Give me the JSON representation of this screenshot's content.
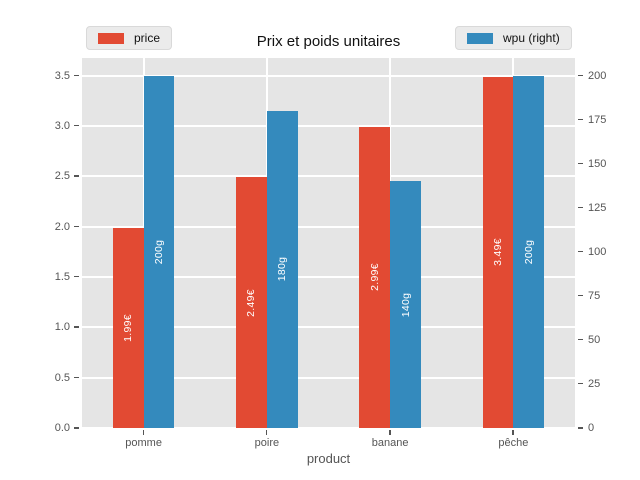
{
  "chart_data": {
    "type": "bar",
    "title": "Prix et poids unitaires",
    "xlabel": "product",
    "categories": [
      "pomme",
      "poire",
      "banane",
      "pêche"
    ],
    "series": [
      {
        "key": "price",
        "name": "price",
        "axis": "left",
        "color": "#E24A33",
        "values": [
          1.99,
          2.49,
          2.99,
          3.49
        ],
        "bar_labels": [
          "1.99€",
          "2.49€",
          "2.99€",
          "3.49€"
        ]
      },
      {
        "key": "wpu",
        "name": "wpu (right)",
        "axis": "right",
        "color": "#348ABD",
        "values": [
          200,
          180,
          140,
          200
        ],
        "bar_labels": [
          "200g",
          "180g",
          "140g",
          "200g"
        ]
      }
    ],
    "left_axis": {
      "ticks": [
        0.0,
        0.5,
        1.0,
        1.5,
        2.0,
        2.5,
        3.0,
        3.5
      ],
      "tick_labels": [
        "0.0",
        "0.5",
        "1.0",
        "1.5",
        "2.0",
        "2.5",
        "3.0",
        "3.5"
      ],
      "range": [
        0,
        3.675
      ]
    },
    "right_axis": {
      "ticks": [
        0,
        25,
        50,
        75,
        100,
        125,
        150,
        175,
        200
      ],
      "tick_labels": [
        "0",
        "25",
        "50",
        "75",
        "100",
        "125",
        "150",
        "175",
        "200"
      ],
      "range": [
        0,
        210
      ]
    },
    "grid": true,
    "legend_position": "top"
  },
  "legend": {
    "price": "price",
    "wpu": "wpu (right)"
  },
  "colors": {
    "price_red": "#E24A33",
    "wpu_blue": "#348ABD",
    "plot_background": "#E5E5E5",
    "grid_white": "#FFFFFF",
    "tick_text": "#555555",
    "bar_label_text": "#FFFFFF"
  }
}
